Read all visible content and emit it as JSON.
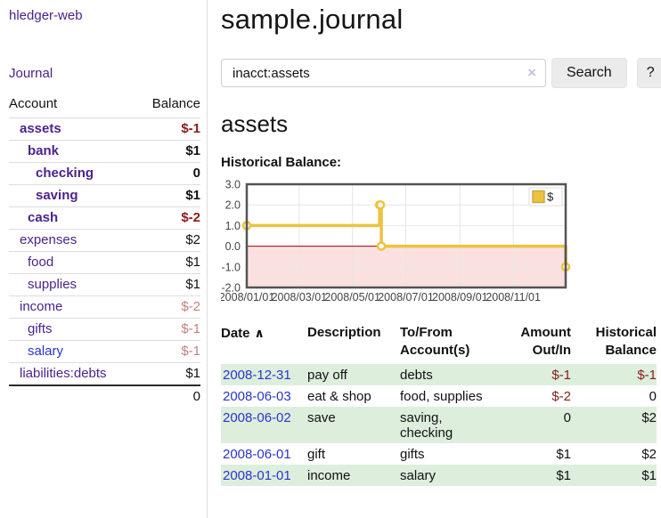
{
  "sidebar": {
    "brand": "hledger-web",
    "journal_link": "Journal",
    "table": {
      "account_header": "Account",
      "balance_header": "Balance",
      "accounts": [
        {
          "name": "assets",
          "balance": "$-1"
        },
        {
          "name": "bank",
          "balance": "$1"
        },
        {
          "name": "checking",
          "balance": "0"
        },
        {
          "name": "saving",
          "balance": "$1"
        },
        {
          "name": "cash",
          "balance": "$-2"
        },
        {
          "name": "expenses",
          "balance": "$2"
        },
        {
          "name": "food",
          "balance": "$1"
        },
        {
          "name": "supplies",
          "balance": "$1"
        },
        {
          "name": "income",
          "balance": "$-2"
        },
        {
          "name": "gifts",
          "balance": "$-1"
        },
        {
          "name": "salary",
          "balance": "$-1"
        },
        {
          "name": "liabilities:debts",
          "balance": "$1"
        }
      ],
      "total": "0"
    }
  },
  "main": {
    "title": "sample.journal",
    "search": {
      "value": "inacct:assets",
      "button_label": "Search",
      "help_label": "?"
    },
    "account_heading": "assets",
    "chart_label": "Historical Balance:"
  },
  "icons": {
    "sort_ascending": "∧",
    "clear_search": "×"
  },
  "register": {
    "headers": {
      "date": "Date",
      "description": "Description",
      "account": "To/From\nAccount(s)",
      "amount": "Amount\nOut/In",
      "balance": "Historical\nBalance"
    },
    "rows": [
      {
        "date": "2008-12-31",
        "description": "pay off",
        "account": "debts",
        "amount": "$-1",
        "balance": "$-1"
      },
      {
        "date": "2008-06-03",
        "description": "eat & shop",
        "account": "food, supplies",
        "amount": "$-2",
        "balance": "0"
      },
      {
        "date": "2008-06-02",
        "description": "save",
        "account": "saving,\nchecking",
        "amount": "0",
        "balance": "$2"
      },
      {
        "date": "2008-06-01",
        "description": "gift",
        "account": "gifts",
        "amount": "$1",
        "balance": "$2"
      },
      {
        "date": "2008-01-01",
        "description": "income",
        "account": "salary",
        "amount": "$1",
        "balance": "$1"
      }
    ]
  },
  "chart_data": {
    "type": "line",
    "title": "Historical Balance",
    "step": true,
    "x_domain": [
      "2008-01-01",
      "2008-12-31"
    ],
    "x_ticks": [
      {
        "date": "2008-01-01",
        "label": "2008/01/01"
      },
      {
        "date": "2008-03-01",
        "label": "2008/03/01"
      },
      {
        "date": "2008-05-01",
        "label": "2008/05/01"
      },
      {
        "date": "2008-07-01",
        "label": "2008/07/01"
      },
      {
        "date": "2008-09-01",
        "label": "2008/09/01"
      },
      {
        "date": "2008-11-01",
        "label": "2008/11/01"
      }
    ],
    "y_ticks": [
      {
        "value": 3,
        "label": "3.0"
      },
      {
        "value": 2,
        "label": "2.0"
      },
      {
        "value": 1,
        "label": "1.0"
      },
      {
        "value": 0,
        "label": "0.0"
      },
      {
        "value": -1,
        "label": "-1.0"
      },
      {
        "value": -2,
        "label": "-2.0"
      }
    ],
    "ylim": [
      -2,
      3
    ],
    "series": [
      {
        "name": "$",
        "color": "#edc240",
        "points": [
          [
            "2008-01-01",
            1
          ],
          [
            "2008-06-01",
            2
          ],
          [
            "2008-06-02",
            2
          ],
          [
            "2008-06-03",
            0
          ],
          [
            "2008-12-31",
            -1
          ]
        ]
      }
    ],
    "legend": [
      {
        "label": "$",
        "color": "#edc240"
      }
    ],
    "legend_position": "top-right",
    "negative_region_fill": "#fbe0e0",
    "zero_line_color": "#a40000",
    "grid_color": "#e6e6e6",
    "border_color": "#545454",
    "tick_text_color": "#444444"
  }
}
